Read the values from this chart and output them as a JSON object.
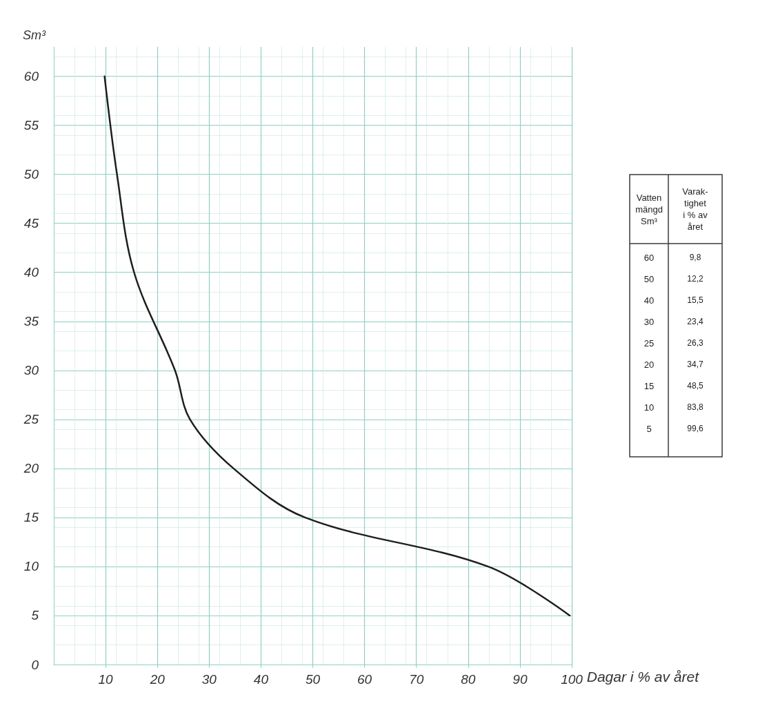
{
  "chart_data": {
    "type": "line",
    "xlabel": "Dagar i % av året",
    "ylabel": "Sm³",
    "x": [
      9.8,
      12.2,
      15.5,
      23.4,
      26.3,
      34.7,
      48.5,
      83.8,
      99.6
    ],
    "series": [
      {
        "color": "#1e1e1e",
        "values": [
          60,
          50,
          40,
          30,
          25,
          20,
          15,
          10,
          5
        ]
      }
    ],
    "value_labels": [
      "9,8",
      "12,2",
      "15,5",
      "23,4",
      "26,3",
      "34,7",
      "48,5",
      "83,8",
      "99,6"
    ],
    "annotations": [
      "Vatten mängd Sm³",
      "Varak- tighet i % av året",
      "60",
      "50",
      "40",
      "30",
      "25",
      "20",
      "15",
      "10",
      "5"
    ],
    "xlim": [
      0,
      100
    ],
    "xticks": [
      10,
      20,
      30,
      40,
      50,
      60,
      70,
      80,
      90,
      100
    ],
    "ylim": [
      0,
      63
    ],
    "yticks": [
      0,
      5,
      10,
      15,
      20,
      25,
      30,
      35,
      40,
      45,
      50,
      55,
      60
    ],
    "grid": true,
    "marker": "none",
    "line_style": "solid"
  }
}
